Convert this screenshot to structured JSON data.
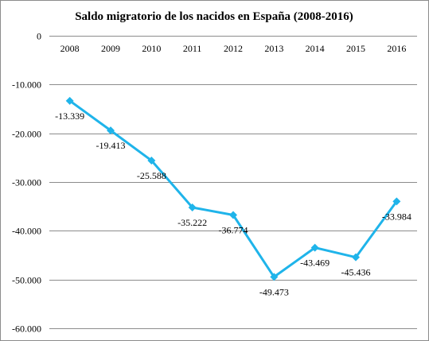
{
  "chart_data": {
    "type": "line",
    "title": "Saldo migratorio  de los nacidos en España (2008-2016)",
    "xlabel": "",
    "ylabel": "",
    "categories": [
      "2008",
      "2009",
      "2010",
      "2011",
      "2012",
      "2013",
      "2014",
      "2015",
      "2016"
    ],
    "series": [
      {
        "values": [
          -13339,
          -19413,
          -25588,
          -35222,
          -36774,
          -49473,
          -43469,
          -45436,
          -33984
        ],
        "labels": [
          "-13.339",
          "-19.413",
          "-25.588",
          "-35.222",
          "-36.774",
          "-49.473",
          "-43.469",
          "-45.436",
          "-33.984"
        ],
        "color": "#1fb4ea"
      }
    ],
    "ylim": [
      -60000,
      0
    ],
    "yticks": [
      0,
      -10000,
      -20000,
      -30000,
      -40000,
      -50000,
      -60000
    ],
    "ytick_labels": [
      "0",
      "-10.000",
      "-20.000",
      "-30.000",
      "-40.000",
      "-50.000",
      "-60.000"
    ],
    "grid": true,
    "x_axis_position": "top",
    "marker": "diamond"
  }
}
